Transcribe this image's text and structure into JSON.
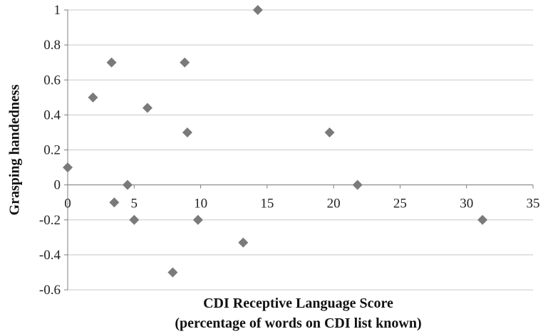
{
  "chart_data": {
    "type": "scatter",
    "title": "",
    "xlabel_lines": [
      "CDI Receptive Language Score",
      "(percentage of words on CDI list known)"
    ],
    "ylabel": "Grasping handedness",
    "xlim": [
      0,
      35
    ],
    "ylim": [
      -0.6,
      1
    ],
    "xticks": [
      0,
      5,
      10,
      15,
      20,
      25,
      30,
      35
    ],
    "yticks": [
      1,
      0.8,
      0.6,
      0.4,
      0.2,
      0,
      -0.2,
      -0.4,
      -0.6
    ],
    "ytick_labels": [
      "1",
      "0.8",
      "0.6",
      "0.4",
      "0.2",
      "0",
      "-0.2",
      "-0.4",
      "-0.6"
    ],
    "grid": true,
    "marker": "diamond",
    "marker_color": "#7a7a7a",
    "points": [
      {
        "x": 0.0,
        "y": 0.1
      },
      {
        "x": 1.9,
        "y": 0.5
      },
      {
        "x": 3.3,
        "y": 0.7
      },
      {
        "x": 3.5,
        "y": -0.1
      },
      {
        "x": 4.5,
        "y": 0.0
      },
      {
        "x": 5.0,
        "y": -0.2
      },
      {
        "x": 6.0,
        "y": 0.44
      },
      {
        "x": 7.9,
        "y": -0.5
      },
      {
        "x": 8.8,
        "y": 0.7
      },
      {
        "x": 9.0,
        "y": 0.3
      },
      {
        "x": 9.8,
        "y": -0.2
      },
      {
        "x": 13.2,
        "y": -0.33
      },
      {
        "x": 14.3,
        "y": 1.0
      },
      {
        "x": 19.7,
        "y": 0.3
      },
      {
        "x": 21.8,
        "y": 0.0
      },
      {
        "x": 31.2,
        "y": -0.2
      }
    ]
  }
}
